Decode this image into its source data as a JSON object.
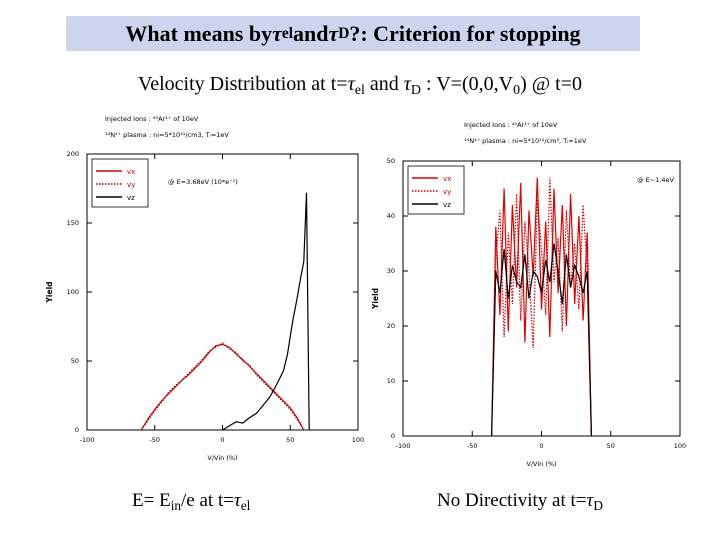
{
  "slide": {
    "title": {
      "part1": "What means by ",
      "tau1": "τ",
      "sub1": "el",
      "part2": " and ",
      "tau2": "τ",
      "sub2": "D",
      "part3": " ?: Criterion for stopping"
    },
    "subtitle": {
      "part1": "Velocity Distribution at t=",
      "tau1": "τ",
      "sub1": "el",
      "part2": " and ",
      "tau2": "τ",
      "sub2": "D",
      "part3": "  : V=(0,0,V",
      "sub3": "0",
      "part4": ") @ t=0"
    },
    "caption_left": {
      "part1": "E= E",
      "sub1": "in",
      "part2": "/e at t=",
      "tau": "τ",
      "sub2": "el"
    },
    "caption_right": {
      "part1": "No Directivity at t=",
      "tau": "τ",
      "sub": "D"
    }
  },
  "chart_data": [
    {
      "type": "line",
      "header_line1": "Injected Ions : ⁴⁰Ar¹⁺ of 10eV",
      "header_line2": "¹⁴N¹⁺ plasma : ni=5*10¹¹/cm3, Tᵢ=1eV",
      "annotation": "@ E=3.68eV (10*e⁻¹)",
      "xlabel": "V/Vin (%)",
      "ylabel": "Yield",
      "xlim": [
        -100,
        100
      ],
      "ylim": [
        0,
        200
      ],
      "xticks": [
        "-100",
        "-50",
        "0",
        "50",
        "100"
      ],
      "yticks": [
        "0",
        "50",
        "100",
        "150",
        "200"
      ],
      "legend_position": "top-left",
      "series": [
        {
          "name": "vx",
          "color": "#e00000",
          "style": "solid",
          "x": [
            -60,
            -55,
            -50,
            -45,
            -40,
            -35,
            -30,
            -25,
            -20,
            -15,
            -10,
            -5,
            0,
            5,
            10,
            15,
            20,
            25,
            30,
            35,
            40,
            45,
            50,
            55,
            60
          ],
          "y": [
            0,
            8,
            15,
            21,
            26,
            31,
            36,
            40,
            45,
            50,
            56,
            61,
            62,
            60,
            55,
            51,
            46,
            41,
            36,
            31,
            26,
            21,
            16,
            9,
            0
          ]
        },
        {
          "name": "vy",
          "color": "#990000",
          "style": "dotted",
          "x": [
            -60,
            -55,
            -50,
            -45,
            -40,
            -35,
            -30,
            -25,
            -20,
            -15,
            -10,
            -5,
            0,
            5,
            10,
            15,
            20,
            25,
            30,
            35,
            40,
            45,
            50,
            55,
            60
          ],
          "y": [
            0,
            7,
            14,
            20,
            27,
            32,
            36,
            41,
            46,
            51,
            57,
            60,
            63,
            59,
            56,
            50,
            47,
            40,
            35,
            30,
            25,
            20,
            15,
            8,
            0
          ]
        },
        {
          "name": "vz",
          "color": "#000000",
          "style": "solid",
          "x": [
            0,
            5,
            10,
            15,
            20,
            25,
            30,
            35,
            40,
            45,
            48,
            50,
            52,
            55,
            58,
            60,
            62,
            64
          ],
          "y": [
            0,
            3,
            6,
            5,
            9,
            12,
            18,
            24,
            33,
            43,
            55,
            68,
            80,
            95,
            112,
            122,
            172,
            0
          ]
        }
      ]
    },
    {
      "type": "line",
      "header_line1": "Injected Ions : ⁴⁰Ar¹⁺ of 10eV",
      "header_line2": "¹⁴N¹⁺ plasma : ni=5*10¹¹/cm³, Tᵢ=1eV",
      "annotation": "@ E~1.4eV",
      "xlabel": "V/Vin (%)",
      "ylabel": "Yield",
      "xlim": [
        -100,
        100
      ],
      "ylim": [
        0,
        50
      ],
      "xticks": [
        "-100",
        "-50",
        "0",
        "50",
        "100"
      ],
      "yticks": [
        "0",
        "10",
        "20",
        "30",
        "40",
        "50"
      ],
      "legend_position": "top-left",
      "series": [
        {
          "name": "vx",
          "color": "#e00000",
          "style": "solid",
          "x": [
            -36,
            -33,
            -30,
            -27,
            -24,
            -21,
            -18,
            -15,
            -12,
            -9,
            -6,
            -3,
            0,
            3,
            6,
            9,
            12,
            15,
            18,
            21,
            24,
            27,
            30,
            33,
            36
          ],
          "y": [
            0,
            38,
            22,
            45,
            19,
            42,
            27,
            46,
            17,
            41,
            29,
            47,
            23,
            39,
            18,
            45,
            26,
            42,
            20,
            44,
            24,
            40,
            21,
            37,
            0
          ]
        },
        {
          "name": "vy",
          "color": "#cc0000",
          "style": "dotted",
          "x": [
            -36,
            -33,
            -30,
            -27,
            -24,
            -21,
            -18,
            -15,
            -12,
            -9,
            -6,
            -3,
            0,
            3,
            6,
            9,
            12,
            15,
            18,
            21,
            24,
            27,
            30,
            33,
            36
          ],
          "y": [
            0,
            32,
            41,
            18,
            37,
            24,
            44,
            21,
            39,
            30,
            16,
            43,
            34,
            22,
            47,
            28,
            36,
            19,
            41,
            27,
            35,
            23,
            42,
            30,
            0
          ]
        },
        {
          "name": "vz",
          "color": "#000000",
          "style": "solid",
          "x": [
            -36,
            -33,
            -30,
            -27,
            -24,
            -21,
            -18,
            -15,
            -12,
            -9,
            -6,
            -3,
            0,
            3,
            6,
            9,
            12,
            15,
            18,
            21,
            24,
            27,
            30,
            33,
            36
          ],
          "y": [
            0,
            30,
            26,
            34,
            25,
            31,
            28,
            27,
            33,
            25,
            30,
            29,
            26,
            32,
            28,
            35,
            30,
            24,
            33,
            27,
            31,
            29,
            26,
            30,
            0
          ]
        }
      ]
    }
  ]
}
